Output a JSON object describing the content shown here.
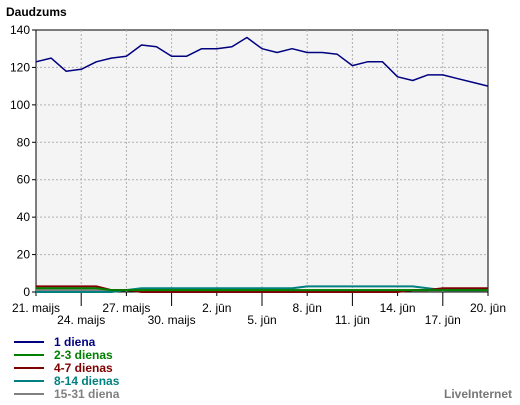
{
  "chart_data": {
    "type": "line",
    "ylabel": "Daudzums",
    "ylim": [
      0,
      140
    ],
    "yticks": [
      0,
      20,
      40,
      60,
      80,
      100,
      120,
      140
    ],
    "xlim": [
      0,
      30
    ],
    "xticks": [
      {
        "day": 0,
        "label": "21. maijs",
        "row": 1
      },
      {
        "day": 3,
        "label": "24. maijs",
        "row": 2
      },
      {
        "day": 6,
        "label": "27. maijs",
        "row": 1
      },
      {
        "day": 9,
        "label": "30. maijs",
        "row": 2
      },
      {
        "day": 12,
        "label": "2. jūn",
        "row": 1
      },
      {
        "day": 15,
        "label": "5. jūn",
        "row": 2
      },
      {
        "day": 18,
        "label": "8. jūn",
        "row": 1
      },
      {
        "day": 21,
        "label": "11. jūn",
        "row": 2
      },
      {
        "day": 24,
        "label": "14. jūn",
        "row": 1
      },
      {
        "day": 27,
        "label": "17. jūn",
        "row": 2
      },
      {
        "day": 30,
        "label": "20. jūn",
        "row": 1
      }
    ],
    "grid": true,
    "legend_position": "bottom-left",
    "series": [
      {
        "name": "1 diena",
        "color": "#000080",
        "values": [
          123,
          125,
          118,
          119,
          123,
          125,
          126,
          132,
          131,
          126,
          126,
          130,
          130,
          131,
          136,
          130,
          128,
          130,
          128,
          128,
          127,
          121,
          123,
          123,
          115,
          113,
          116,
          116,
          114,
          112,
          110
        ]
      },
      {
        "name": "2-3 dienas",
        "color": "#008000",
        "values": [
          2,
          2,
          2,
          2,
          2,
          1,
          1,
          1,
          1,
          1,
          1,
          1,
          1,
          1,
          1,
          1,
          1,
          1,
          1,
          1,
          1,
          1,
          1,
          1,
          1,
          1,
          1,
          1,
          1,
          1,
          1
        ]
      },
      {
        "name": "4-7 dienas",
        "color": "#800000",
        "values": [
          3,
          3,
          3,
          3,
          3,
          1,
          1,
          0,
          0,
          0,
          0,
          0,
          0,
          0,
          0,
          0,
          0,
          0,
          0,
          0,
          0,
          0,
          0,
          0,
          0,
          1,
          1,
          2,
          2,
          2,
          2
        ]
      },
      {
        "name": "8-14 dienas",
        "color": "#008080",
        "values": [
          0,
          0,
          0,
          0,
          0,
          0,
          1,
          2,
          2,
          2,
          2,
          2,
          2,
          2,
          2,
          2,
          2,
          2,
          3,
          3,
          3,
          3,
          3,
          3,
          3,
          3,
          2,
          1,
          1,
          1,
          1
        ]
      },
      {
        "name": "15-31 diena",
        "color": "#808080",
        "values": [
          1,
          1,
          1,
          1,
          1,
          1,
          1,
          1,
          1,
          1,
          1,
          1,
          1,
          1,
          1,
          1,
          1,
          1,
          1,
          1,
          1,
          1,
          1,
          1,
          1,
          1,
          1,
          1,
          1,
          1,
          1
        ]
      }
    ]
  },
  "brand": "LiveInternet"
}
